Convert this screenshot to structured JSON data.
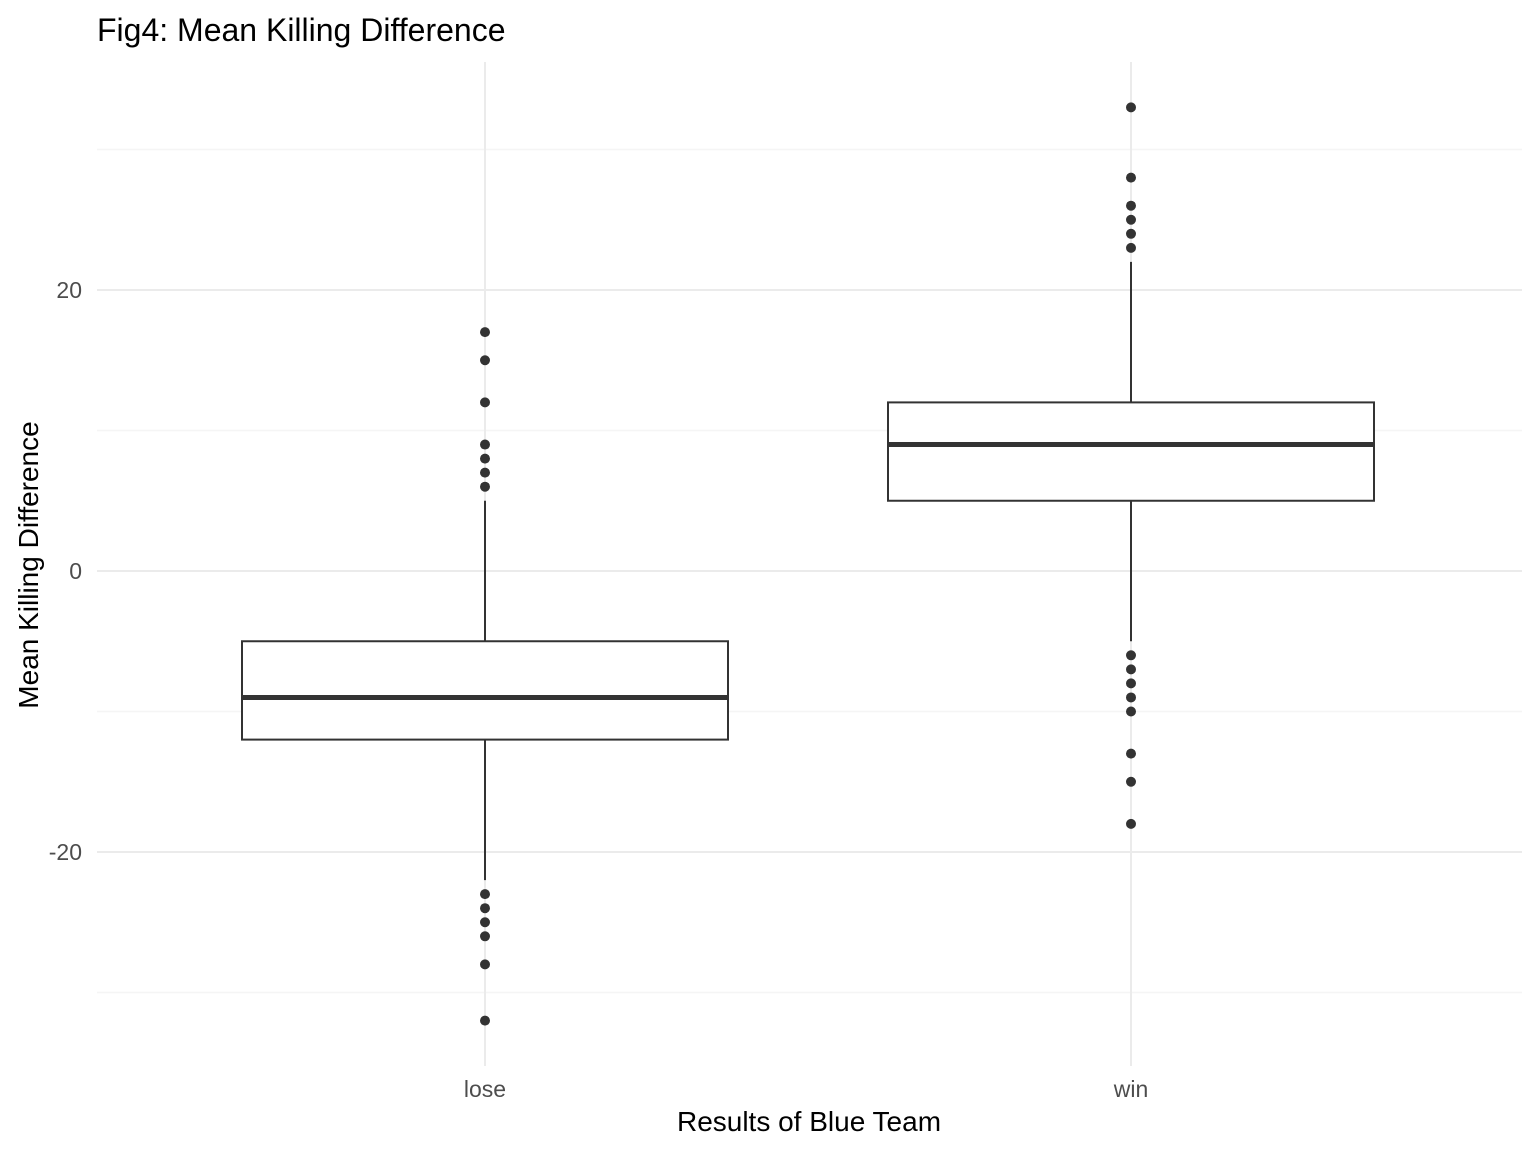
{
  "chart_data": {
    "type": "boxplot",
    "title": "Fig4: Mean Killing Difference",
    "xlabel": "Results of Blue Team",
    "ylabel": "Mean Killing Difference",
    "ylim": [
      -32.5,
      36
    ],
    "y_ticks": [
      -20,
      0,
      20
    ],
    "grid": true,
    "categories": [
      "lose",
      "win"
    ],
    "boxes": [
      {
        "category": "lose",
        "q1": -12,
        "median": -9,
        "q3": -5,
        "whisker_low": -22,
        "whisker_high": 5,
        "outliers": [
          17,
          15,
          12,
          9,
          8,
          7,
          6,
          -23,
          -24,
          -25,
          -26,
          -28,
          -32
        ]
      },
      {
        "category": "win",
        "q1": 5,
        "median": 9,
        "q3": 12,
        "whisker_low": -5,
        "whisker_high": 22,
        "outliers": [
          33,
          28,
          26,
          25,
          24,
          23,
          -6,
          -7,
          -8,
          -9,
          -10,
          -13,
          -15,
          -18
        ]
      }
    ],
    "colors": {
      "box_stroke": "#333333",
      "point_fill": "#333333",
      "grid_major": "#ebebeb",
      "grid_minor": "#f5f5f5"
    }
  }
}
